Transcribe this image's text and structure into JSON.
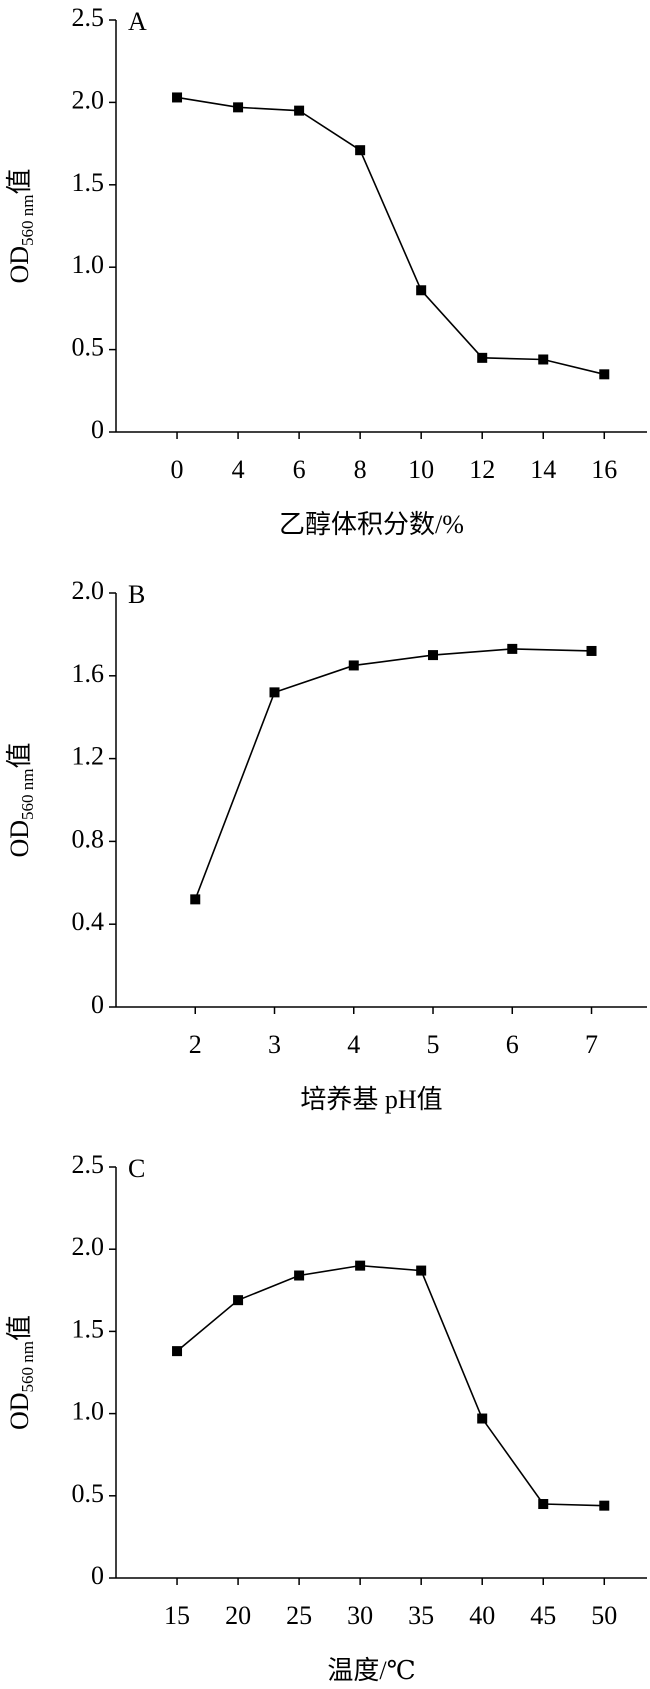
{
  "chart_data": [
    {
      "type": "line",
      "annotation": "A",
      "ylabel": {
        "main": "OD",
        "sub": "560 nm",
        "suffix": "值"
      },
      "xlabel": "乙醇体积分数/%",
      "categories": [
        "0",
        "4",
        "6",
        "8",
        "10",
        "12",
        "14",
        "16"
      ],
      "values": [
        2.03,
        1.97,
        1.95,
        1.71,
        0.86,
        0.45,
        0.44,
        0.35
      ],
      "color": "#000000",
      "ylim": [
        0,
        2.5
      ],
      "yticks": [
        0,
        0.5,
        {
          "value": 1,
          "label": "1.0"
        },
        1.5,
        {
          "value": 2,
          "label": "2.0"
        },
        2.5
      ]
    },
    {
      "type": "line",
      "annotation": "B",
      "ylabel": {
        "main": "OD",
        "sub": "560 nm",
        "suffix": "值"
      },
      "xlabel": "培养基 pH值",
      "categories": [
        "2",
        "3",
        "4",
        "5",
        "6",
        "7"
      ],
      "values": [
        0.52,
        1.52,
        1.65,
        1.7,
        1.73,
        1.72
      ],
      "color": "#000000",
      "ylim": [
        0,
        2
      ],
      "yticks": [
        0,
        0.4,
        0.8,
        1.2,
        1.6,
        {
          "value": 2,
          "label": "2.0"
        }
      ]
    },
    {
      "type": "line",
      "annotation": "C",
      "ylabel": {
        "main": "OD",
        "sub": "560 nm",
        "suffix": "值"
      },
      "xlabel": "温度/℃",
      "categories": [
        "15",
        "20",
        "25",
        "30",
        "35",
        "40",
        "45",
        "50"
      ],
      "values": [
        1.38,
        1.69,
        1.84,
        1.9,
        1.87,
        0.97,
        0.45,
        0.44
      ],
      "color": "#000000",
      "ylim": [
        0,
        2.5
      ],
      "yticks": [
        0,
        0.5,
        {
          "value": 1,
          "label": "1.0"
        },
        1.5,
        {
          "value": 2,
          "label": "2.0"
        },
        2.5
      ]
    }
  ]
}
